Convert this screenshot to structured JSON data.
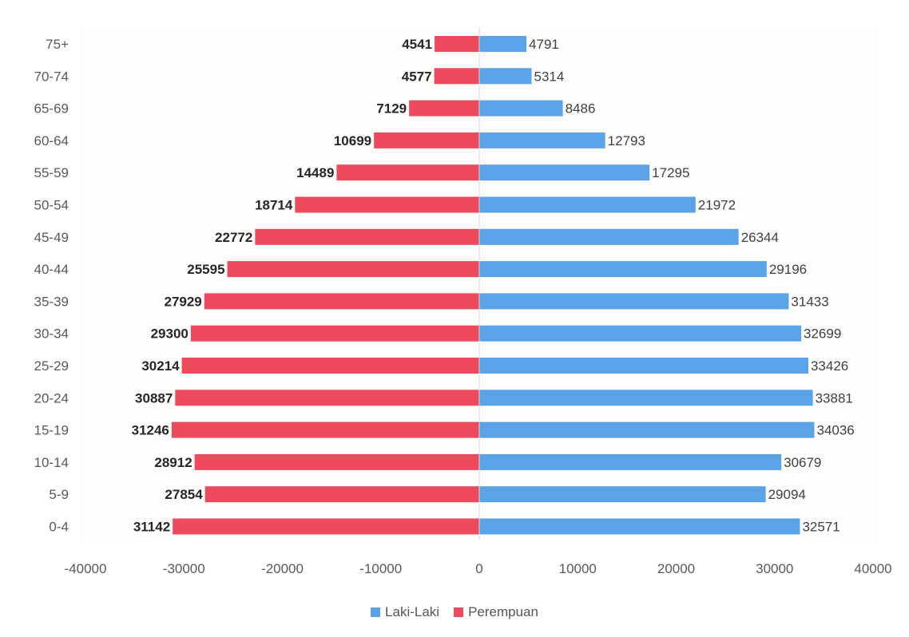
{
  "chart_data": {
    "type": "bar",
    "orientation": "horizontal",
    "layout": "population-pyramid",
    "categories": [
      "75+",
      "70-74",
      "65-69",
      "60-64",
      "55-59",
      "50-54",
      "45-49",
      "40-44",
      "35-39",
      "30-34",
      "25-29",
      "20-24",
      "15-19",
      "10-14",
      "5-9",
      "0-4"
    ],
    "series": [
      {
        "name": "Laki-Laki",
        "color": "#5aa3e6",
        "values": [
          4791,
          5314,
          8486,
          12793,
          17295,
          21972,
          26344,
          29196,
          31433,
          32699,
          33426,
          33881,
          34036,
          30679,
          29094,
          32571
        ],
        "labels": [
          "4791",
          "5314",
          "8486",
          "12793",
          "17295",
          "21972",
          "26344",
          "29196",
          "31433",
          "32699",
          "33426",
          "33881",
          "34036",
          "30679",
          "29094",
          "32571"
        ]
      },
      {
        "name": "Perempuan",
        "color": "#ee4a5e",
        "values": [
          -4541,
          -4577,
          -7129,
          -10699,
          -14489,
          -18714,
          -22772,
          -25595,
          -27929,
          -29300,
          -30214,
          -30887,
          -31246,
          -28912,
          -27854,
          -31142
        ],
        "labels": [
          "4541",
          "4577",
          "7129",
          "10699",
          "14489",
          "18714",
          "22772",
          "25595",
          "27929",
          "29300",
          "30214",
          "30887",
          "31246",
          "28912",
          "27854",
          "31142"
        ]
      }
    ],
    "xlim": [
      -40000,
      40000
    ],
    "xticks": [
      "-40000",
      "-30000",
      "-20000",
      "-10000",
      "0",
      "10000",
      "20000",
      "30000",
      "40000"
    ],
    "grid": false,
    "legend_position": "bottom-center",
    "title": "",
    "xlabel": "",
    "ylabel": ""
  }
}
